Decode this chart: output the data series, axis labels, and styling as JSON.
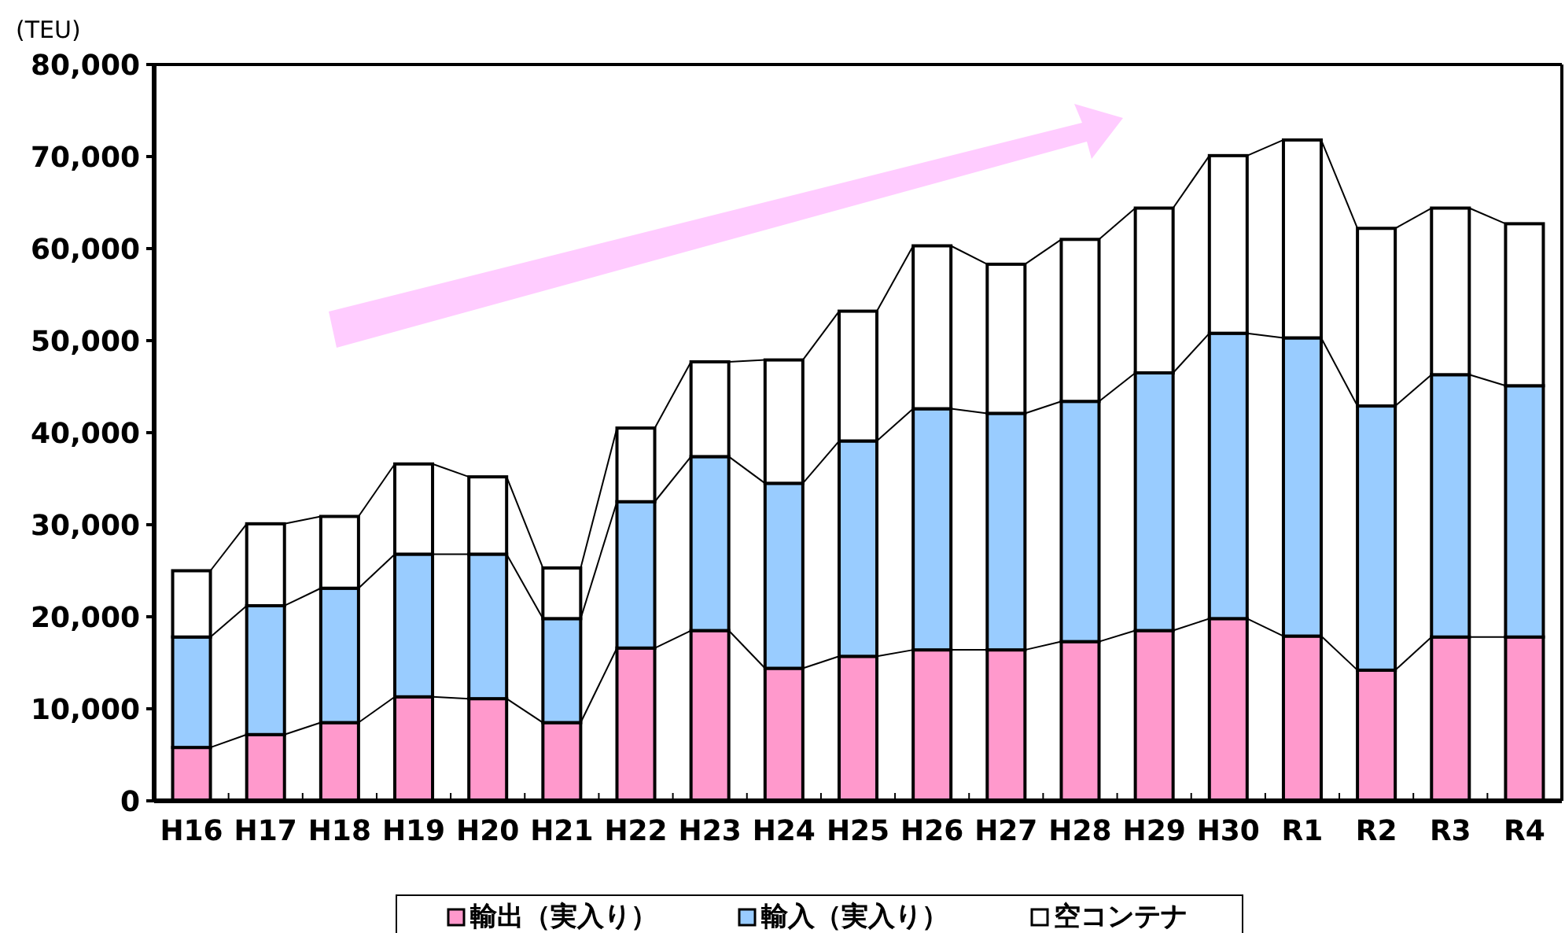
{
  "chart_data": {
    "type": "bar",
    "stacked": true,
    "ylabel": "(TEU)",
    "categories": [
      "H16",
      "H17",
      "H18",
      "H19",
      "H20",
      "H21",
      "H22",
      "H23",
      "H24",
      "H25",
      "H26",
      "H27",
      "H28",
      "H29",
      "H30",
      "R1",
      "R2",
      "R3",
      "R4"
    ],
    "series": [
      {
        "name": "輸出（実入り）",
        "color": "#ff99cc",
        "values": [
          5800,
          7200,
          8500,
          11300,
          11100,
          8500,
          16600,
          18500,
          14400,
          15700,
          16400,
          16400,
          17300,
          18500,
          19800,
          17900,
          14200,
          17800,
          17800
        ]
      },
      {
        "name": "輸入（実入り）",
        "color": "#99ccff",
        "values": [
          12000,
          14000,
          14600,
          15500,
          15700,
          11300,
          15900,
          18900,
          20100,
          23400,
          26200,
          25700,
          26100,
          28000,
          31000,
          32400,
          28700,
          28500,
          27300
        ]
      },
      {
        "name": "空コンテナ",
        "color": "#ffffff",
        "values": [
          7200,
          8900,
          7800,
          9800,
          8400,
          5500,
          8000,
          10300,
          13400,
          14100,
          17700,
          16200,
          17600,
          17900,
          19300,
          21500,
          19300,
          18100,
          17600
        ]
      }
    ],
    "ylim": [
      0,
      80000
    ],
    "yticks": [
      {
        "value": 0,
        "label": "0"
      },
      {
        "value": 10000,
        "label": "10,000"
      },
      {
        "value": 20000,
        "label": "20,000"
      },
      {
        "value": 30000,
        "label": "30,000"
      },
      {
        "value": 40000,
        "label": "40,000"
      },
      {
        "value": 50000,
        "label": "50,000"
      },
      {
        "value": 60000,
        "label": "60,000"
      },
      {
        "value": 70000,
        "label": "70,000"
      },
      {
        "value": 80000,
        "label": "80,000"
      }
    ],
    "grid": false,
    "legend": "bottom"
  }
}
